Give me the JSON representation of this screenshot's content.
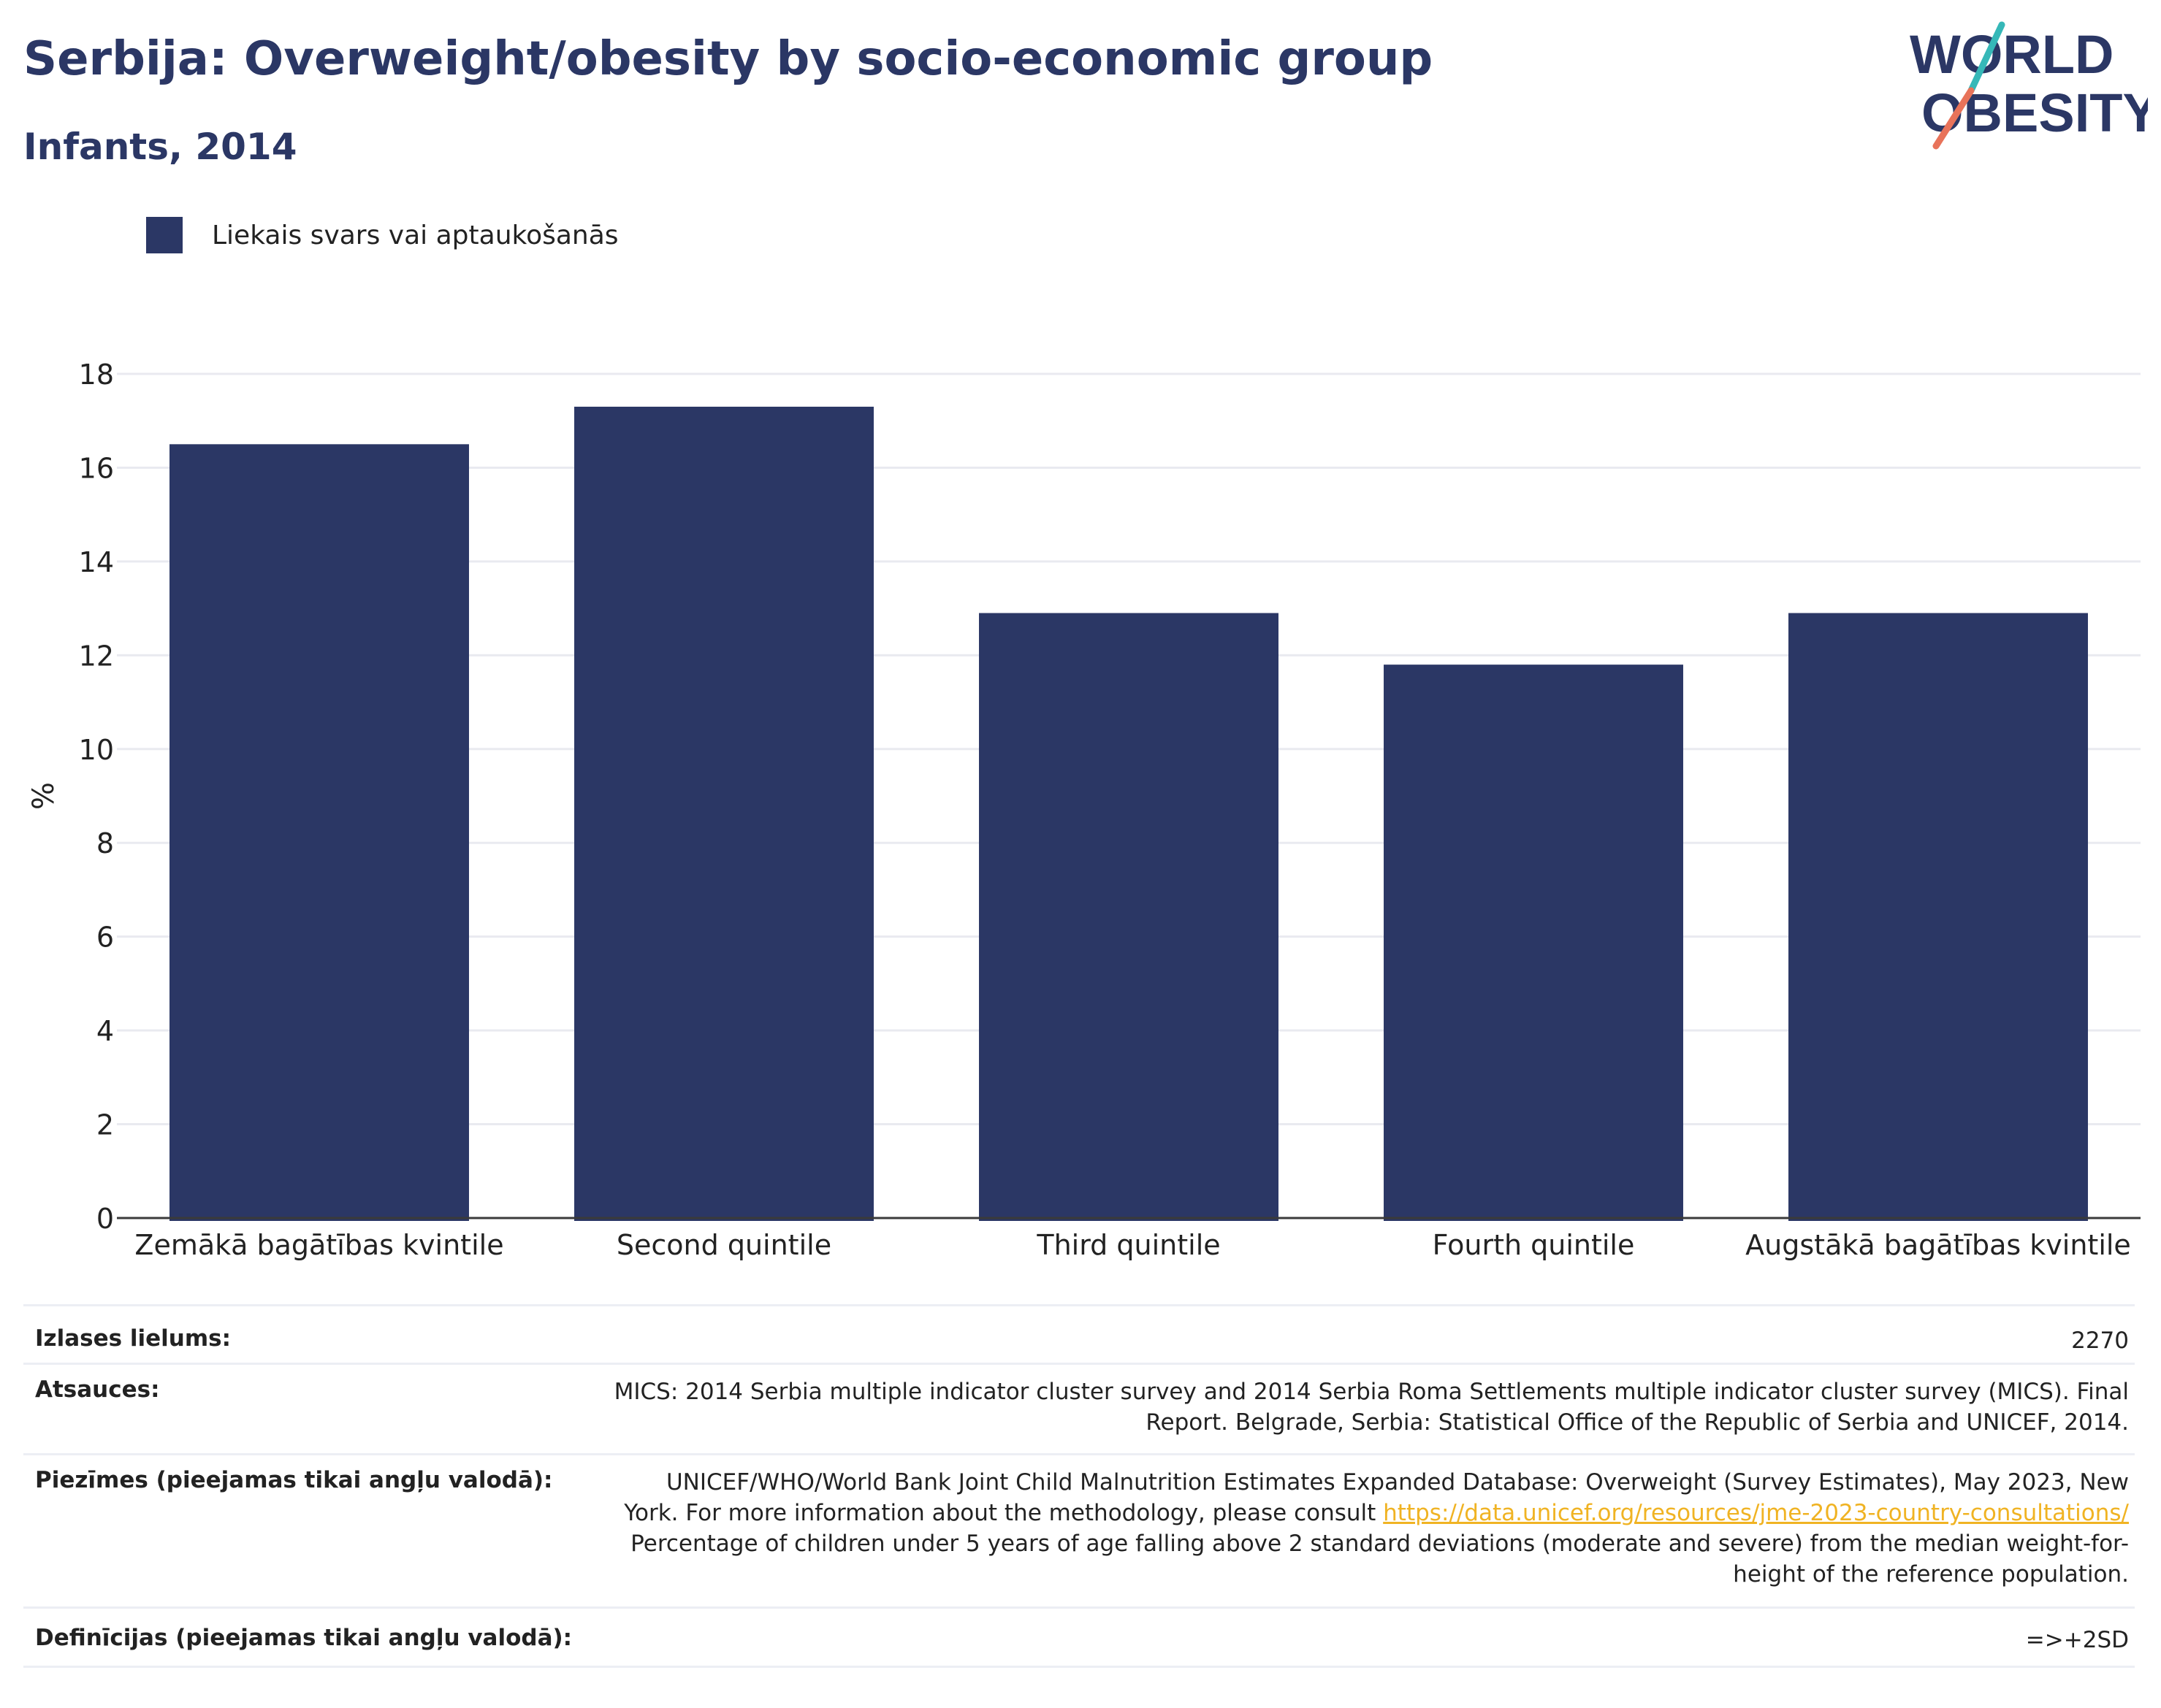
{
  "header": {
    "title": "Serbija: Overweight/obesity by socio-economic group",
    "subtitle": "Infants, 2014"
  },
  "logo": {
    "line1": "WORLD",
    "line2": "OBESITY",
    "colors": {
      "text": "#2b3765",
      "slash_top": "#36b8b8",
      "slash_bottom": "#e8735a"
    }
  },
  "colors": {
    "bar": "#2b3765",
    "grid": "#e9eaf0",
    "axis": "#3a3a3a",
    "link": "#f0b323"
  },
  "legend": {
    "label": "Liekais svars vai aptaukošanās"
  },
  "chart_data": {
    "type": "bar",
    "categories": [
      "Zemākā bagātības kvintile",
      "Second quintile",
      "Third quintile",
      "Fourth quintile",
      "Augstākā bagātības kvintile"
    ],
    "series": [
      {
        "name": "Liekais svars vai aptaukošanās",
        "values": [
          16.5,
          17.3,
          12.9,
          11.8,
          12.9
        ]
      }
    ],
    "ylabel": "%",
    "ylim": [
      0,
      18
    ],
    "yticks": [
      0,
      2,
      4,
      6,
      8,
      10,
      12,
      14,
      16,
      18
    ],
    "grid": true,
    "legend_position": "top-left"
  },
  "info": {
    "sample_size": {
      "label": "Izlases lielums:",
      "value": "2270"
    },
    "references": {
      "label": "Atsauces:",
      "line1": "MICS: 2014 Serbia multiple indicator cluster survey and 2014 Serbia Roma Settlements multiple indicator cluster survey (MICS). Final",
      "line2": "Report. Belgrade, Serbia: Statistical Office of the Republic of Serbia and UNICEF, 2014."
    },
    "notes": {
      "label": "Piezīmes (pieejamas tikai angļu valodā):",
      "line1": "UNICEF/WHO/World Bank Joint Child Malnutrition Estimates Expanded Database: Overweight (Survey Estimates), May 2023, New",
      "line2_text": "York. For more information about the methodology, please consult ",
      "link": "https://data.unicef.org/resources/jme-2023-country-consultations/",
      "line3": "Percentage of children under 5 years of age falling above 2 standard deviations (moderate and severe) from the median weight-for-",
      "line4": "height of the reference population."
    },
    "definitions": {
      "label": "Definīcijas (pieejamas tikai angļu valodā):",
      "value": "=>+2SD"
    }
  }
}
